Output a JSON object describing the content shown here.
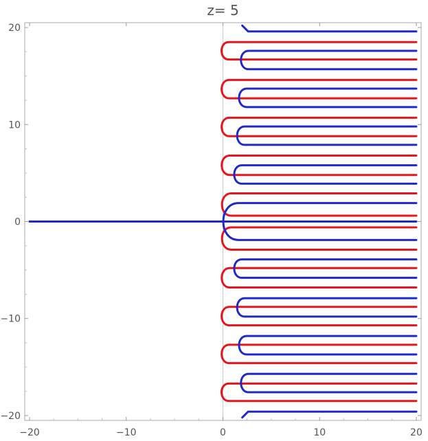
{
  "chart_data": {
    "type": "line",
    "title": "z= 5",
    "xlabel": "",
    "ylabel": "",
    "xlim": [
      -20.5,
      20.5
    ],
    "ylim": [
      -20.5,
      20.5
    ],
    "x_ticks": [
      -20,
      -10,
      0,
      10,
      20
    ],
    "y_ticks": [
      -20,
      -10,
      0,
      10,
      20
    ],
    "x_tick_labels": [
      "−20",
      "−10",
      "0",
      "10",
      "20"
    ],
    "y_tick_labels": [
      "−20",
      "−10",
      "0",
      "10",
      "20"
    ],
    "grid": false,
    "colors": {
      "red": "#e8141b",
      "blue": "#1f29c8",
      "axis": "#999999",
      "text": "#555555"
    },
    "series": [
      {
        "color": "red",
        "curves": [
          {
            "ytop": 18.5,
            "ybot": 16.7,
            "xtip": -0.3
          },
          {
            "ytop": 14.6,
            "ybot": 12.7,
            "xtip": -0.3
          },
          {
            "ytop": 10.7,
            "ybot": 8.8,
            "xtip": -0.3
          },
          {
            "ytop": 6.8,
            "ybot": 4.8,
            "xtip": -0.3
          },
          {
            "ytop": 2.9,
            "ybot": 0.6,
            "xtip": -0.3
          },
          {
            "ytop": -0.6,
            "ybot": -2.9,
            "xtip": -0.3
          },
          {
            "ytop": -4.8,
            "ybot": -6.8,
            "xtip": -0.3
          },
          {
            "ytop": -8.8,
            "ybot": -10.7,
            "xtip": -0.3
          },
          {
            "ytop": -12.7,
            "ybot": -14.6,
            "xtip": -0.3
          },
          {
            "ytop": -16.7,
            "ybot": -18.5,
            "xtip": -0.3
          }
        ]
      },
      {
        "color": "blue",
        "curves": [
          {
            "ytop": 17.6,
            "ybot": 15.7,
            "xtip": 1.7
          },
          {
            "ytop": 13.7,
            "ybot": 11.8,
            "xtip": 1.5
          },
          {
            "ytop": 9.8,
            "ybot": 7.9,
            "xtip": 1.3
          },
          {
            "ytop": 5.8,
            "ybot": 3.9,
            "xtip": 1.0
          },
          {
            "ytop": 1.9,
            "ybot": -1.9,
            "xtip": -0.3
          },
          {
            "ytop": -3.9,
            "ybot": -5.8,
            "xtip": 1.0
          },
          {
            "ytop": -7.9,
            "ybot": -9.8,
            "xtip": 1.3
          },
          {
            "ytop": -11.8,
            "ybot": -13.7,
            "xtip": 1.5
          },
          {
            "ytop": -15.7,
            "ybot": -17.6,
            "xtip": 1.7
          }
        ],
        "extra_lines": [
          {
            "points": [
              [
                -20,
                0
              ],
              [
                20,
                0
              ]
            ]
          },
          {
            "points": [
              [
                2.0,
                20.2
              ],
              [
                2.6,
                19.6
              ],
              [
                20,
                19.6
              ]
            ]
          },
          {
            "points": [
              [
                2.0,
                -20.2
              ],
              [
                2.6,
                -19.6
              ],
              [
                20,
                -19.6
              ]
            ]
          }
        ]
      }
    ]
  }
}
